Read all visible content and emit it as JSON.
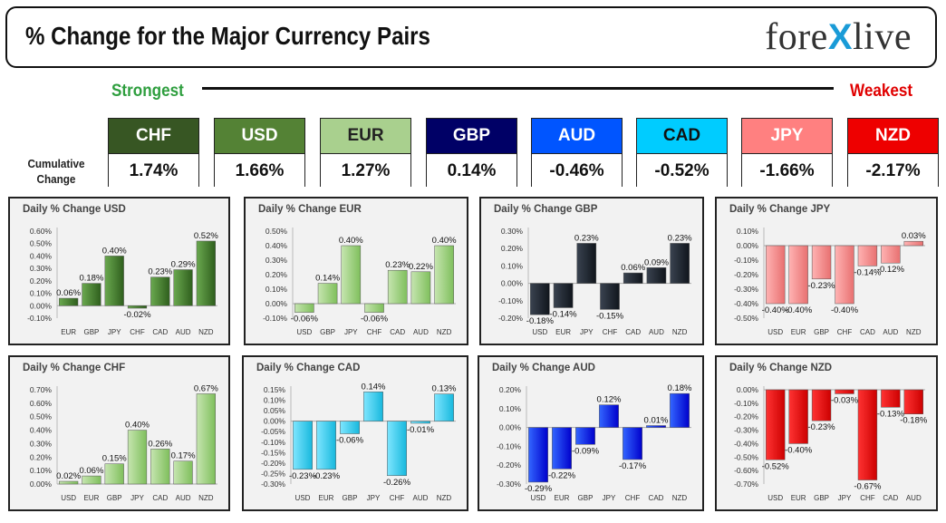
{
  "header": {
    "title": "% Change for the Major Currency Pairs",
    "logo_left": "fore",
    "logo_x": "X",
    "logo_right": "live"
  },
  "ranking": {
    "strongest_label": "Strongest",
    "weakest_label": "Weakest",
    "cumulative_label_line1": "Cumulative",
    "cumulative_label_line2": "Change",
    "tiles": [
      {
        "ccy": "CHF",
        "value": "1.74%",
        "bg": "#375623",
        "fg": "#ffffff"
      },
      {
        "ccy": "USD",
        "value": "1.66%",
        "bg": "#548235",
        "fg": "#ffffff"
      },
      {
        "ccy": "EUR",
        "value": "1.27%",
        "bg": "#a9d08e",
        "fg": "#222222"
      },
      {
        "ccy": "GBP",
        "value": "0.14%",
        "bg": "#000066",
        "fg": "#ffffff"
      },
      {
        "ccy": "AUD",
        "value": "-0.46%",
        "bg": "#0055ff",
        "fg": "#ffffff"
      },
      {
        "ccy": "CAD",
        "value": "-0.52%",
        "bg": "#00ccff",
        "fg": "#111111"
      },
      {
        "ccy": "JPY",
        "value": "-1.66%",
        "bg": "#ff8080",
        "fg": "#ffffff"
      },
      {
        "ccy": "NZD",
        "value": "-2.17%",
        "bg": "#ee0000",
        "fg": "#ffffff"
      }
    ]
  },
  "chart_data": [
    {
      "id": "usd",
      "type": "bar",
      "title": "Daily % Change USD",
      "color_top": "#6aa84f",
      "color_bottom": "#2f5f1d",
      "categories": [
        "EUR",
        "GBP",
        "JPY",
        "CHF",
        "CAD",
        "AUD",
        "NZD"
      ],
      "values": [
        0.06,
        0.18,
        0.4,
        -0.02,
        0.23,
        0.29,
        0.52
      ],
      "labels": [
        "0.06%",
        "0.18%",
        "0.40%",
        "-0.02%",
        "0.23%",
        "0.29%",
        "0.52%"
      ],
      "ylim": [
        -0.1,
        0.6
      ],
      "ytick_step": 0.1,
      "yticks": [
        "0.60%",
        "0.50%",
        "0.40%",
        "0.30%",
        "0.20%",
        "0.10%",
        "0.00%",
        "-0.10%"
      ]
    },
    {
      "id": "eur",
      "type": "bar",
      "title": "Daily % Change EUR",
      "color_top": "#c6e5b0",
      "color_bottom": "#7fbf5c",
      "categories": [
        "USD",
        "GBP",
        "JPY",
        "CHF",
        "CAD",
        "AUD",
        "NZD"
      ],
      "values": [
        -0.06,
        0.14,
        0.4,
        -0.06,
        0.23,
        0.22,
        0.4
      ],
      "labels": [
        "-0.06%",
        "0.14%",
        "0.40%",
        "-0.06%",
        "0.23%",
        "0.22%",
        "0.40%"
      ],
      "ylim": [
        -0.1,
        0.5
      ],
      "ytick_step": 0.1,
      "yticks": [
        "0.50%",
        "0.40%",
        "0.30%",
        "0.20%",
        "0.10%",
        "0.00%",
        "-0.10%"
      ]
    },
    {
      "id": "gbp",
      "type": "bar",
      "title": "Daily % Change GBP",
      "color_top": "#3a4350",
      "color_bottom": "#10151c",
      "categories": [
        "USD",
        "EUR",
        "JPY",
        "CHF",
        "CAD",
        "AUD",
        "NZD"
      ],
      "values": [
        -0.18,
        -0.14,
        0.23,
        -0.15,
        0.06,
        0.09,
        0.23
      ],
      "labels": [
        "-0.18%",
        "-0.14%",
        "0.23%",
        "-0.15%",
        "0.06%",
        "0.09%",
        "0.23%"
      ],
      "ylim": [
        -0.2,
        0.3
      ],
      "ytick_step": 0.1,
      "yticks": [
        "0.30%",
        "0.20%",
        "0.10%",
        "0.00%",
        "-0.10%",
        "-0.20%"
      ]
    },
    {
      "id": "jpy",
      "type": "bar",
      "title": "Daily % Change JPY",
      "color_top": "#ffb3b3",
      "color_bottom": "#e87070",
      "categories": [
        "USD",
        "EUR",
        "GBP",
        "CHF",
        "CAD",
        "AUD",
        "NZD"
      ],
      "values": [
        -0.4,
        -0.4,
        -0.23,
        -0.4,
        -0.14,
        -0.12,
        0.03
      ],
      "labels": [
        "-0.40%",
        "-0.40%",
        "-0.23%",
        "-0.40%",
        "-0.14%",
        "-0.12%",
        "0.03%"
      ],
      "ylim": [
        -0.5,
        0.1
      ],
      "ytick_step": 0.1,
      "yticks": [
        "0.10%",
        "0.00%",
        "-0.10%",
        "-0.20%",
        "-0.30%",
        "-0.40%",
        "-0.50%"
      ]
    },
    {
      "id": "chf",
      "type": "bar",
      "title": "Daily % Change CHF",
      "color_top": "#c6e5b0",
      "color_bottom": "#7fbf5c",
      "categories": [
        "USD",
        "EUR",
        "GBP",
        "JPY",
        "CAD",
        "AUD",
        "NZD"
      ],
      "values": [
        0.02,
        0.06,
        0.15,
        0.4,
        0.26,
        0.17,
        0.67
      ],
      "labels": [
        "0.02%",
        "0.06%",
        "0.15%",
        "0.40%",
        "0.26%",
        "0.17%",
        "0.67%"
      ],
      "ylim": [
        0.0,
        0.7
      ],
      "ytick_step": 0.1,
      "yticks": [
        "0.70%",
        "0.60%",
        "0.50%",
        "0.40%",
        "0.30%",
        "0.20%",
        "0.10%",
        "0.00%"
      ]
    },
    {
      "id": "cad",
      "type": "bar",
      "title": "Daily % Change CAD",
      "color_top": "#7fe6ff",
      "color_bottom": "#17b8dd",
      "categories": [
        "USD",
        "EUR",
        "GBP",
        "JPY",
        "CHF",
        "AUD",
        "NZD"
      ],
      "values": [
        -0.23,
        -0.23,
        -0.06,
        0.14,
        -0.26,
        -0.01,
        0.13
      ],
      "labels": [
        "-0.23%",
        "-0.23%",
        "-0.06%",
        "0.14%",
        "-0.26%",
        "-0.01%",
        "0.13%"
      ],
      "ylim": [
        -0.3,
        0.15
      ],
      "ytick_step": 0.05,
      "yticks": [
        "0.15%",
        "0.10%",
        "0.05%",
        "0.00%",
        "-0.05%",
        "-0.10%",
        "-0.15%",
        "-0.20%",
        "-0.25%",
        "-0.30%"
      ]
    },
    {
      "id": "aud",
      "type": "bar",
      "title": "Daily % Change AUD",
      "color_top": "#3366ff",
      "color_bottom": "#0000cc",
      "categories": [
        "USD",
        "EUR",
        "GBP",
        "JPY",
        "CHF",
        "CAD",
        "NZD"
      ],
      "values": [
        -0.29,
        -0.22,
        -0.09,
        0.12,
        -0.17,
        0.01,
        0.18
      ],
      "labels": [
        "-0.29%",
        "-0.22%",
        "-0.09%",
        "0.12%",
        "-0.17%",
        "0.01%",
        "0.18%"
      ],
      "ylim": [
        -0.3,
        0.2
      ],
      "ytick_step": 0.1,
      "yticks": [
        "0.20%",
        "0.10%",
        "0.00%",
        "-0.10%",
        "-0.20%",
        "-0.30%"
      ]
    },
    {
      "id": "nzd",
      "type": "bar",
      "title": "Daily % Change NZD",
      "color_top": "#ff3333",
      "color_bottom": "#cc0000",
      "categories": [
        "USD",
        "EUR",
        "GBP",
        "JPY",
        "CHF",
        "CAD",
        "AUD"
      ],
      "values": [
        -0.52,
        -0.4,
        -0.23,
        -0.03,
        -0.67,
        -0.13,
        -0.18
      ],
      "labels": [
        "-0.52%",
        "-0.40%",
        "-0.23%",
        "-0.03%",
        "-0.67%",
        "-0.13%",
        "-0.18%"
      ],
      "ylim": [
        -0.7,
        0.0
      ],
      "ytick_step": 0.1,
      "yticks": [
        "0.00%",
        "-0.10%",
        "-0.20%",
        "-0.30%",
        "-0.40%",
        "-0.50%",
        "-0.60%",
        "-0.70%"
      ]
    }
  ]
}
